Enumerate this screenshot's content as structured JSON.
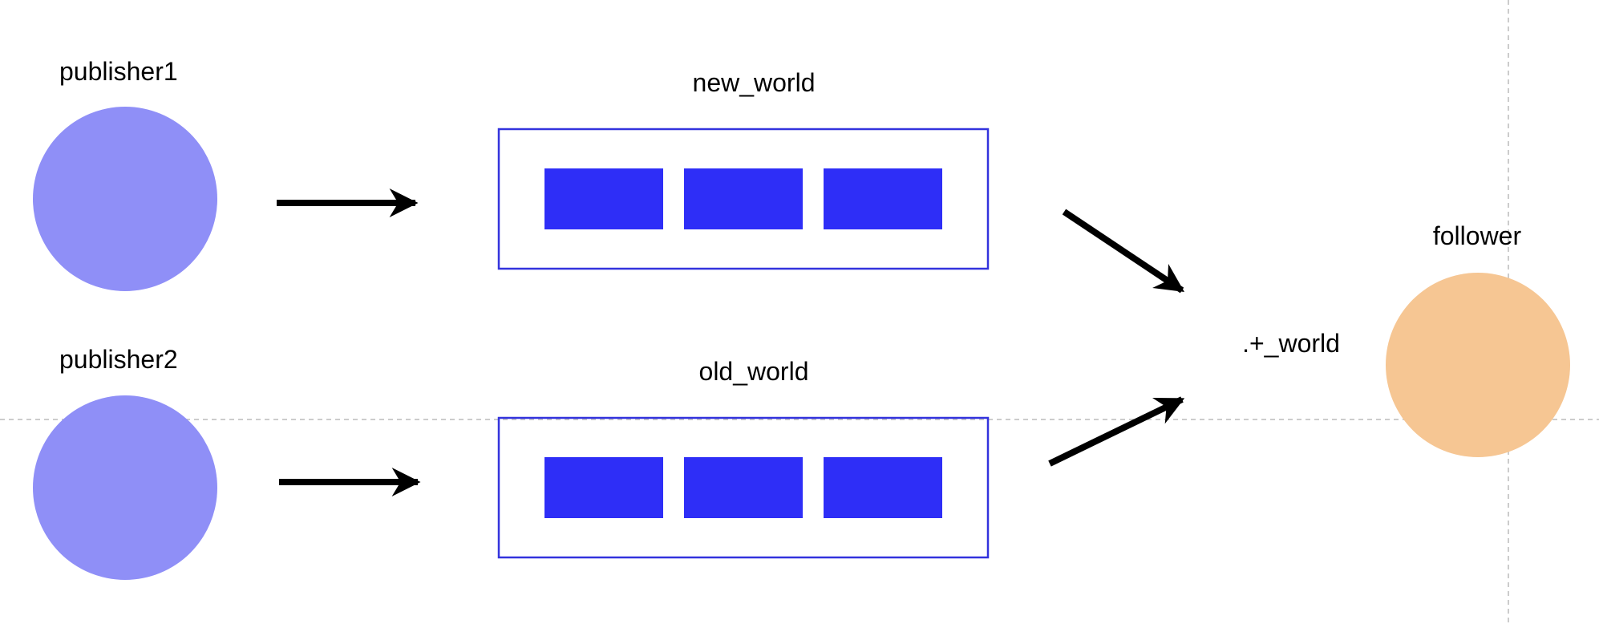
{
  "diagram": {
    "publishers": [
      {
        "label": "publisher1"
      },
      {
        "label": "publisher2"
      }
    ],
    "topics": [
      {
        "label": "new_world"
      },
      {
        "label": "old_world"
      }
    ],
    "pattern": {
      "label": ".+_world"
    },
    "follower": {
      "label": "follower"
    }
  },
  "colors": {
    "publisher_fill": "#8F8FF7",
    "topic_border": "#3333DD",
    "message_fill": "#2E2EF7",
    "follower_fill": "#F6C693",
    "arrow": "#000000",
    "guide_line": "#BBBBBB"
  }
}
